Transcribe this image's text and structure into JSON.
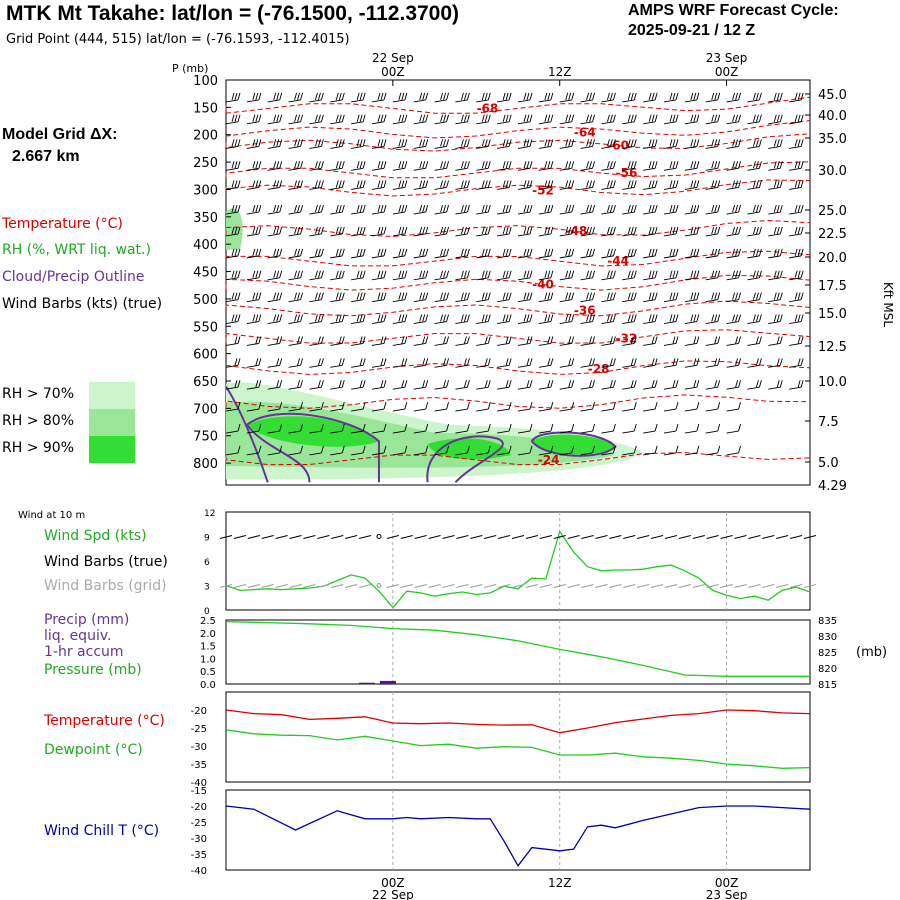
{
  "header": {
    "title": "MTK Mt Takahe:  lat/lon = (-76.1500, -112.3700)",
    "subtitle": "Grid Point (444, 515) lat/lon = (-76.1593, -112.4015)",
    "cycle_line1": "AMPS WRF Forecast Cycle:",
    "cycle_line2": "2025-09-21 / 12  Z",
    "grid_label": "Model Grid ΔX:",
    "grid_value": "2.667 km"
  },
  "legend": {
    "temperature": "Temperature (°C)",
    "rh": "RH (%, WRT liq. wat.)",
    "cloud": "Cloud/Precip Outline",
    "wind": "Wind Barbs (kts) (true)",
    "rh70": "RH > 70%",
    "rh80": "RH > 80%",
    "rh90": "RH > 90%"
  },
  "colors": {
    "temperature": "#dd0000",
    "rh_text": "#22aa22",
    "cloud": "#663399",
    "rh70": "#ccf5cc",
    "rh80": "#99e699",
    "rh90": "#33dd33",
    "green_line": "#22cc22",
    "wind_chill": "#0000aa",
    "precip": "#551199"
  },
  "time_axis": {
    "top_dates": [
      "22 Sep",
      "23 Sep"
    ],
    "ticks": [
      "00Z",
      "12Z",
      "00Z"
    ],
    "bottom_dates": [
      "22 Sep",
      "23 Sep"
    ]
  },
  "chart_data": [
    {
      "type": "heatmap",
      "name": "cross-section",
      "y_label": "P (mb)",
      "right_label": "Kft MSL",
      "pressure_ticks": [
        "100",
        "150",
        "200",
        "250",
        "300",
        "350",
        "400",
        "450",
        "500",
        "550",
        "600",
        "650",
        "700",
        "750",
        "800"
      ],
      "kft_ticks": [
        "45.0",
        "40.0",
        "35.0",
        "30.0",
        "25.0",
        "22.5",
        "20.0",
        "17.5",
        "15.0",
        "12.5",
        "10.0",
        "7.5",
        "5.0",
        "4.29"
      ],
      "temperature_labels": [
        {
          "t": 6.8,
          "p": 152,
          "v": "-68"
        },
        {
          "t": 13.8,
          "p": 196,
          "v": "-64"
        },
        {
          "t": 16.2,
          "p": 220,
          "v": "-60"
        },
        {
          "t": 16.8,
          "p": 270,
          "v": "-56"
        },
        {
          "t": 10.8,
          "p": 302,
          "v": "-52"
        },
        {
          "t": 13.2,
          "p": 376,
          "v": "-48"
        },
        {
          "t": 16.2,
          "p": 431,
          "v": "-44"
        },
        {
          "t": 10.8,
          "p": 474,
          "v": "-40"
        },
        {
          "t": 13.8,
          "p": 521,
          "v": "-36"
        },
        {
          "t": 16.8,
          "p": 572,
          "v": "-32"
        },
        {
          "t": 14.8,
          "p": 628,
          "v": "-28"
        },
        {
          "t": 11.2,
          "p": 794,
          "v": "-24"
        }
      ]
    },
    {
      "type": "line",
      "name": "wind-10m",
      "label": "Wind at 10 m",
      "series_labels": {
        "speed": "Wind Spd (kts)",
        "barbs_true": "Wind Barbs (true)",
        "barbs_grid": "Wind Barbs (grid)"
      },
      "yticks": [
        "12",
        "9",
        "6",
        "3",
        "0"
      ],
      "ylim": [
        0,
        12
      ],
      "x": [
        -12,
        -11,
        -10,
        -9,
        -8,
        -7,
        -6,
        -5,
        -4,
        -3,
        -2,
        -1,
        0,
        1,
        2,
        3,
        4,
        5,
        6,
        7,
        8,
        9,
        10,
        11,
        12,
        13,
        14,
        15,
        16,
        17,
        18,
        19,
        20,
        21,
        22,
        23,
        24,
        25,
        26,
        27,
        28,
        29,
        30
      ],
      "values": [
        3,
        2.4,
        2.5,
        2.6,
        2.5,
        2.6,
        2.7,
        2.9,
        3.6,
        4.3,
        3.9,
        2.3,
        0.3,
        2.3,
        2.1,
        1.7,
        2,
        2.2,
        1.9,
        2.1,
        2.9,
        2.6,
        3.9,
        3.8,
        9.6,
        7.1,
        5.3,
        4.8,
        4.9,
        4.9,
        5,
        5.3,
        5.5,
        4.8,
        3.9,
        2.4,
        1.8,
        1.4,
        1.7,
        1.2,
        2.4,
        2.8,
        2.2
      ]
    },
    {
      "type": "line",
      "name": "precip-pressure",
      "series_labels": {
        "precip": "Precip (mm)",
        "liq": "liq. equiv.",
        "accum": "1-hr accum",
        "pressure": "Pressure (mb)"
      },
      "yticks_left": [
        "2.5",
        "2.0",
        "1.5",
        "1.0",
        "0.5",
        "0.0"
      ],
      "yticks_right": [
        "835",
        "830",
        "825",
        "820",
        "815"
      ],
      "right_unit": "(mb)",
      "x": [
        -12,
        -9,
        -6,
        -3,
        0,
        3,
        6,
        9,
        12,
        15,
        18,
        21,
        24,
        27,
        30
      ],
      "pressure": [
        834.5,
        834.2,
        833.8,
        833.3,
        832.3,
        831.8,
        830.4,
        828.5,
        825.8,
        823.5,
        820.8,
        817.8,
        817.4,
        817.4,
        817.4
      ],
      "precip_bars": [
        {
          "t": -2,
          "v": 0.05
        },
        {
          "t": -0.5,
          "v": 0.12
        }
      ]
    },
    {
      "type": "line",
      "name": "temp-dewpoint",
      "series_labels": {
        "temperature": "Temperature (°C)",
        "dewpoint": "Dewpoint (°C)"
      },
      "yticks": [
        "-20",
        "-25",
        "-30",
        "-35",
        "-40"
      ],
      "ylim": [
        -40,
        -15
      ],
      "x": [
        -12,
        -10,
        -8,
        -6,
        -4,
        -2,
        0,
        2,
        4,
        6,
        8,
        10,
        12,
        14,
        16,
        18,
        20,
        22,
        24,
        26,
        28,
        30
      ],
      "temperature": [
        -20,
        -21,
        -21.3,
        -22.6,
        -22.3,
        -21.9,
        -23.6,
        -23.8,
        -23.6,
        -24,
        -24.2,
        -24.1,
        -26.3,
        -25,
        -23.5,
        -22.5,
        -21.5,
        -21,
        -20,
        -20.2,
        -20.8,
        -21
      ],
      "dewpoint": [
        -25.5,
        -26.6,
        -27,
        -27.1,
        -28.3,
        -27.3,
        -28.6,
        -29.9,
        -29.5,
        -30.6,
        -30.2,
        -30.4,
        -32.5,
        -32.5,
        -32,
        -33,
        -33.4,
        -34,
        -35,
        -35.5,
        -36.2,
        -36
      ]
    },
    {
      "type": "line",
      "name": "wind-chill",
      "series_labels": {
        "wind_chill": "Wind Chill T (°C)"
      },
      "yticks": [
        "-15",
        "-20",
        "-25",
        "-30",
        "-35",
        "-40"
      ],
      "ylim": [
        -40,
        -15
      ],
      "x": [
        -12,
        -10,
        -7,
        -4,
        -2,
        0,
        1,
        2,
        4,
        6,
        7,
        8,
        9,
        10,
        12,
        13,
        14,
        15,
        16,
        18,
        20,
        22,
        24,
        26,
        28,
        30
      ],
      "values": [
        -20,
        -21,
        -27.5,
        -21.5,
        -24,
        -24,
        -23.6,
        -24,
        -23.6,
        -24,
        -24,
        -31,
        -38.7,
        -33,
        -34,
        -33.5,
        -26.5,
        -26,
        -26.8,
        -24.5,
        -22.5,
        -20.5,
        -20,
        -20,
        -20.5,
        -21
      ]
    }
  ]
}
